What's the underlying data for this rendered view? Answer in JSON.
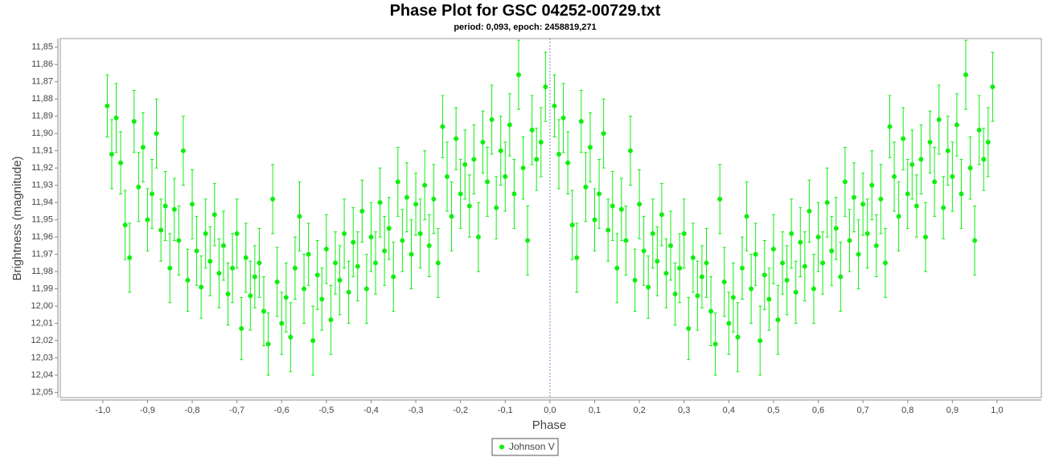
{
  "chart_data": {
    "type": "scatter",
    "title": "Phase Plot for GSC 04252-00729.txt",
    "subtitle": "period: 0,093, epoch: 2458819,271",
    "x_label": "Phase",
    "y_label": "Brightness (magnitude)",
    "xlim": [
      -1.095,
      1.099
    ],
    "ylim": [
      12.053,
      11.845
    ],
    "xticks": [
      {
        "value": -1.0,
        "label": "-1,0"
      },
      {
        "value": -0.9,
        "label": "-0,9"
      },
      {
        "value": -0.8,
        "label": "-0,8"
      },
      {
        "value": -0.7,
        "label": "-0,7"
      },
      {
        "value": -0.6,
        "label": "-0,6"
      },
      {
        "value": -0.5,
        "label": "-0,5"
      },
      {
        "value": -0.4,
        "label": "-0,4"
      },
      {
        "value": -0.3,
        "label": "-0,3"
      },
      {
        "value": -0.2,
        "label": "-0,2"
      },
      {
        "value": -0.1,
        "label": "-0,1"
      },
      {
        "value": 0,
        "label": "0,0"
      },
      {
        "value": 0.1,
        "label": "0,1"
      },
      {
        "value": 0.2,
        "label": "0,2"
      },
      {
        "value": 0.3,
        "label": "0,3"
      },
      {
        "value": 0.4,
        "label": "0,4"
      },
      {
        "value": 0.5,
        "label": "0,5"
      },
      {
        "value": 0.6,
        "label": "0,6"
      },
      {
        "value": 0.7,
        "label": "0,7"
      },
      {
        "value": 0.8,
        "label": "0,8"
      },
      {
        "value": 0.9,
        "label": "0,9"
      },
      {
        "value": 1.0,
        "label": "1,0"
      }
    ],
    "yticks": [
      {
        "value": 11.85,
        "label": "11,85"
      },
      {
        "value": 11.86,
        "label": "11,86"
      },
      {
        "value": 11.87,
        "label": "11,87"
      },
      {
        "value": 11.88,
        "label": "11,88"
      },
      {
        "value": 11.89,
        "label": "11,89"
      },
      {
        "value": 11.9,
        "label": "11,90"
      },
      {
        "value": 11.91,
        "label": "11,91"
      },
      {
        "value": 11.92,
        "label": "11,92"
      },
      {
        "value": 11.93,
        "label": "11,93"
      },
      {
        "value": 11.94,
        "label": "11,94"
      },
      {
        "value": 11.95,
        "label": "11,95"
      },
      {
        "value": 11.96,
        "label": "11,96"
      },
      {
        "value": 11.97,
        "label": "11,97"
      },
      {
        "value": 11.98,
        "label": "11,98"
      },
      {
        "value": 11.99,
        "label": "11,99"
      },
      {
        "value": 12.0,
        "label": "12,00"
      },
      {
        "value": 12.01,
        "label": "12,01"
      },
      {
        "value": 12.02,
        "label": "12,02"
      },
      {
        "value": 12.03,
        "label": "12,03"
      },
      {
        "value": 12.04,
        "label": "12,04"
      },
      {
        "value": 12.05,
        "label": "12,05"
      }
    ],
    "zero_line": true,
    "x": [
      -0.99,
      -0.98,
      -0.97,
      -0.96,
      -0.95,
      -0.94,
      -0.93,
      -0.92,
      -0.91,
      -0.9,
      -0.89,
      -0.88,
      -0.87,
      -0.86,
      -0.85,
      -0.84,
      -0.83,
      -0.82,
      -0.81,
      -0.8,
      -0.79,
      -0.78,
      -0.77,
      -0.76,
      -0.75,
      -0.74,
      -0.73,
      -0.72,
      -0.71,
      -0.7,
      -0.69,
      -0.68,
      -0.67,
      -0.66,
      -0.65,
      -0.64,
      -0.63,
      -0.62,
      -0.61,
      -0.6,
      -0.59,
      -0.58,
      -0.57,
      -0.56,
      -0.55,
      -0.54,
      -0.53,
      -0.52,
      -0.51,
      -0.5,
      -0.49,
      -0.48,
      -0.47,
      -0.46,
      -0.45,
      -0.44,
      -0.43,
      -0.42,
      -0.41,
      -0.4,
      -0.39,
      -0.38,
      -0.37,
      -0.36,
      -0.35,
      -0.34,
      -0.33,
      -0.32,
      -0.31,
      -0.3,
      -0.29,
      -0.28,
      -0.27,
      -0.26,
      -0.25,
      -0.24,
      -0.23,
      -0.22,
      -0.21,
      -0.2,
      -0.19,
      -0.18,
      -0.17,
      -0.16,
      -0.15,
      -0.14,
      -0.13,
      -0.12,
      -0.11,
      -0.1,
      -0.09,
      -0.08,
      -0.07,
      -0.06,
      -0.05,
      -0.04,
      -0.03,
      -0.02,
      -0.01,
      0.01,
      0.02,
      0.03,
      0.04,
      0.05,
      0.06,
      0.07,
      0.08,
      0.09,
      0.1,
      0.11,
      0.12,
      0.13,
      0.14,
      0.15,
      0.16,
      0.17,
      0.18,
      0.19,
      0.2,
      0.21,
      0.22,
      0.23,
      0.24,
      0.25,
      0.26,
      0.27,
      0.28,
      0.29,
      0.3,
      0.31,
      0.32,
      0.33,
      0.34,
      0.35,
      0.36,
      0.37,
      0.38,
      0.39,
      0.4,
      0.41,
      0.42,
      0.43,
      0.44,
      0.45,
      0.46,
      0.47,
      0.48,
      0.49,
      0.5,
      0.51,
      0.52,
      0.53,
      0.54,
      0.55,
      0.56,
      0.57,
      0.58,
      0.59,
      0.6,
      0.61,
      0.62,
      0.63,
      0.64,
      0.65,
      0.66,
      0.67,
      0.68,
      0.69,
      0.7,
      0.71,
      0.72,
      0.73,
      0.74,
      0.75,
      0.76,
      0.77,
      0.78,
      0.79,
      0.8,
      0.81,
      0.82,
      0.83,
      0.84,
      0.85,
      0.86,
      0.87,
      0.88,
      0.89,
      0.9,
      0.91,
      0.92,
      0.93,
      0.94,
      0.95,
      0.96,
      0.97,
      0.98,
      0.99
    ],
    "series": [
      {
        "name": "Johnson V",
        "color": "#11ee11",
        "values": [
          11.884,
          11.912,
          11.891,
          11.917,
          11.953,
          11.972,
          11.893,
          11.931,
          11.908,
          11.95,
          11.935,
          11.9,
          11.956,
          11.942,
          11.978,
          11.944,
          11.962,
          11.91,
          11.985,
          11.941,
          11.968,
          11.989,
          11.958,
          11.974,
          11.947,
          11.981,
          11.965,
          11.993,
          11.978,
          11.958,
          12.013,
          11.972,
          11.994,
          11.983,
          11.975,
          12.003,
          12.022,
          11.938,
          11.986,
          12.01,
          11.995,
          12.018,
          11.978,
          11.948,
          11.99,
          11.97,
          12.02,
          11.982,
          11.996,
          11.967,
          12.008,
          11.975,
          11.985,
          11.958,
          11.992,
          11.963,
          11.977,
          11.945,
          11.99,
          11.96,
          11.975,
          11.94,
          11.968,
          11.955,
          11.983,
          11.928,
          11.962,
          11.937,
          11.97,
          11.941,
          11.958,
          11.93,
          11.965,
          11.938,
          11.975,
          11.896,
          11.925,
          11.948,
          11.903,
          11.935,
          11.918,
          11.942,
          11.915,
          11.96,
          11.905,
          11.928,
          11.892,
          11.943,
          11.91,
          11.925,
          11.895,
          11.935,
          11.866,
          11.92,
          11.962,
          11.898,
          11.915,
          11.905,
          11.873,
          11.884,
          11.912,
          11.891,
          11.917,
          11.953,
          11.972,
          11.893,
          11.931,
          11.908,
          11.95,
          11.935,
          11.9,
          11.956,
          11.942,
          11.978,
          11.944,
          11.962,
          11.91,
          11.985,
          11.941,
          11.968,
          11.989,
          11.958,
          11.974,
          11.947,
          11.981,
          11.965,
          11.993,
          11.978,
          11.958,
          12.013,
          11.972,
          11.994,
          11.983,
          11.975,
          12.003,
          12.022,
          11.938,
          11.986,
          12.01,
          11.995,
          12.018,
          11.978,
          11.948,
          11.99,
          11.97,
          12.02,
          11.982,
          11.996,
          11.967,
          12.008,
          11.975,
          11.985,
          11.958,
          11.992,
          11.963,
          11.977,
          11.945,
          11.99,
          11.96,
          11.975,
          11.94,
          11.968,
          11.955,
          11.983,
          11.928,
          11.962,
          11.937,
          11.97,
          11.941,
          11.958,
          11.93,
          11.965,
          11.938,
          11.975,
          11.896,
          11.925,
          11.948,
          11.903,
          11.935,
          11.918,
          11.942,
          11.915,
          11.96,
          11.905,
          11.928,
          11.892,
          11.943,
          11.91,
          11.925,
          11.895,
          11.935,
          11.866,
          11.92,
          11.962,
          11.898,
          11.915,
          11.905,
          11.873
        ],
        "errors": [
          0.018,
          0.02,
          0.02,
          0.018,
          0.02,
          0.02,
          0.018,
          0.02,
          0.02,
          0.018,
          0.02,
          0.02,
          0.018,
          0.02,
          0.02,
          0.018,
          0.02,
          0.02,
          0.018,
          0.02,
          0.02,
          0.018,
          0.02,
          0.02,
          0.018,
          0.02,
          0.02,
          0.018,
          0.02,
          0.02,
          0.018,
          0.02,
          0.02,
          0.018,
          0.02,
          0.02,
          0.018,
          0.02,
          0.02,
          0.018,
          0.02,
          0.02,
          0.018,
          0.02,
          0.02,
          0.018,
          0.02,
          0.02,
          0.018,
          0.02,
          0.02,
          0.018,
          0.02,
          0.02,
          0.018,
          0.02,
          0.02,
          0.018,
          0.02,
          0.02,
          0.018,
          0.02,
          0.02,
          0.018,
          0.02,
          0.02,
          0.018,
          0.02,
          0.02,
          0.018,
          0.02,
          0.02,
          0.018,
          0.02,
          0.02,
          0.018,
          0.02,
          0.02,
          0.018,
          0.02,
          0.02,
          0.018,
          0.02,
          0.02,
          0.018,
          0.02,
          0.02,
          0.018,
          0.02,
          0.02,
          0.018,
          0.02,
          0.02,
          0.018,
          0.02,
          0.02,
          0.018,
          0.02,
          0.02,
          0.018,
          0.02,
          0.02,
          0.018,
          0.02,
          0.02,
          0.018,
          0.02,
          0.02,
          0.018,
          0.02,
          0.02,
          0.018,
          0.02,
          0.02,
          0.018,
          0.02,
          0.02,
          0.018,
          0.02,
          0.02,
          0.018,
          0.02,
          0.02,
          0.018,
          0.02,
          0.02,
          0.018,
          0.02,
          0.02,
          0.018,
          0.02,
          0.02,
          0.018,
          0.02,
          0.02,
          0.018,
          0.02,
          0.02,
          0.018,
          0.02,
          0.02,
          0.018,
          0.02,
          0.02,
          0.018,
          0.02,
          0.02,
          0.018,
          0.02,
          0.02,
          0.018,
          0.02,
          0.02,
          0.018,
          0.02,
          0.02,
          0.018,
          0.02,
          0.02,
          0.018,
          0.02,
          0.02,
          0.018,
          0.02,
          0.02,
          0.018,
          0.02,
          0.02,
          0.018,
          0.02,
          0.02,
          0.018,
          0.02,
          0.02,
          0.018,
          0.02,
          0.02,
          0.018,
          0.02,
          0.02,
          0.018,
          0.02,
          0.02,
          0.018,
          0.02,
          0.02,
          0.018,
          0.02,
          0.02,
          0.018,
          0.02,
          0.02,
          0.018,
          0.02,
          0.02,
          0.018,
          0.02,
          0.02
        ]
      }
    ]
  }
}
